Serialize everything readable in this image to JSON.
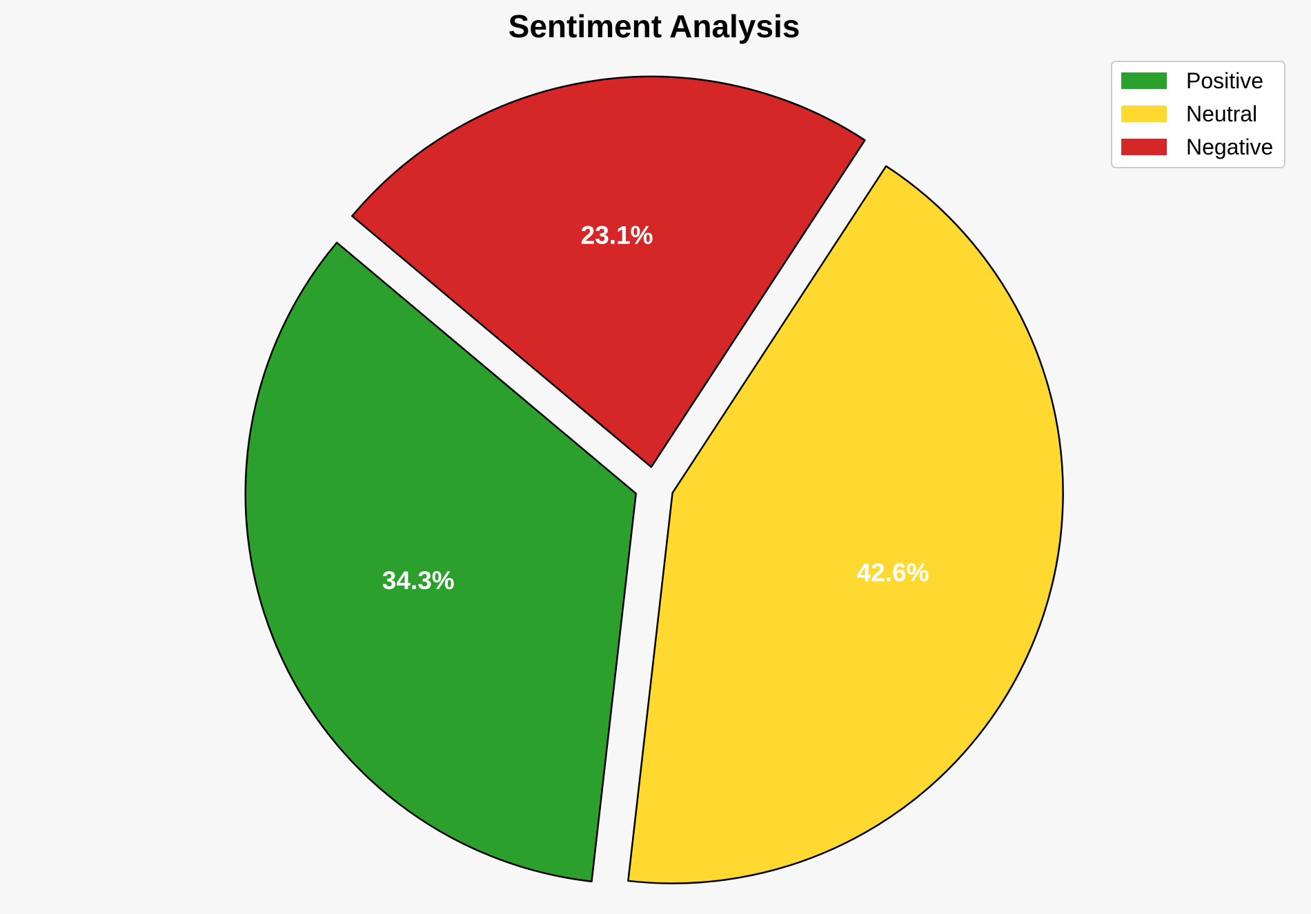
{
  "chart_data": {
    "type": "pie",
    "title": "Sentiment Analysis",
    "labels": [
      "Positive",
      "Neutral",
      "Negative"
    ],
    "values": [
      34.3,
      42.6,
      23.1
    ],
    "value_labels": [
      "34.3%",
      "42.6%",
      "23.1%"
    ],
    "colors": [
      "#2ca02c",
      "#ffd92f",
      "#d62728"
    ],
    "exploded": true,
    "legend_position": "top-right"
  }
}
